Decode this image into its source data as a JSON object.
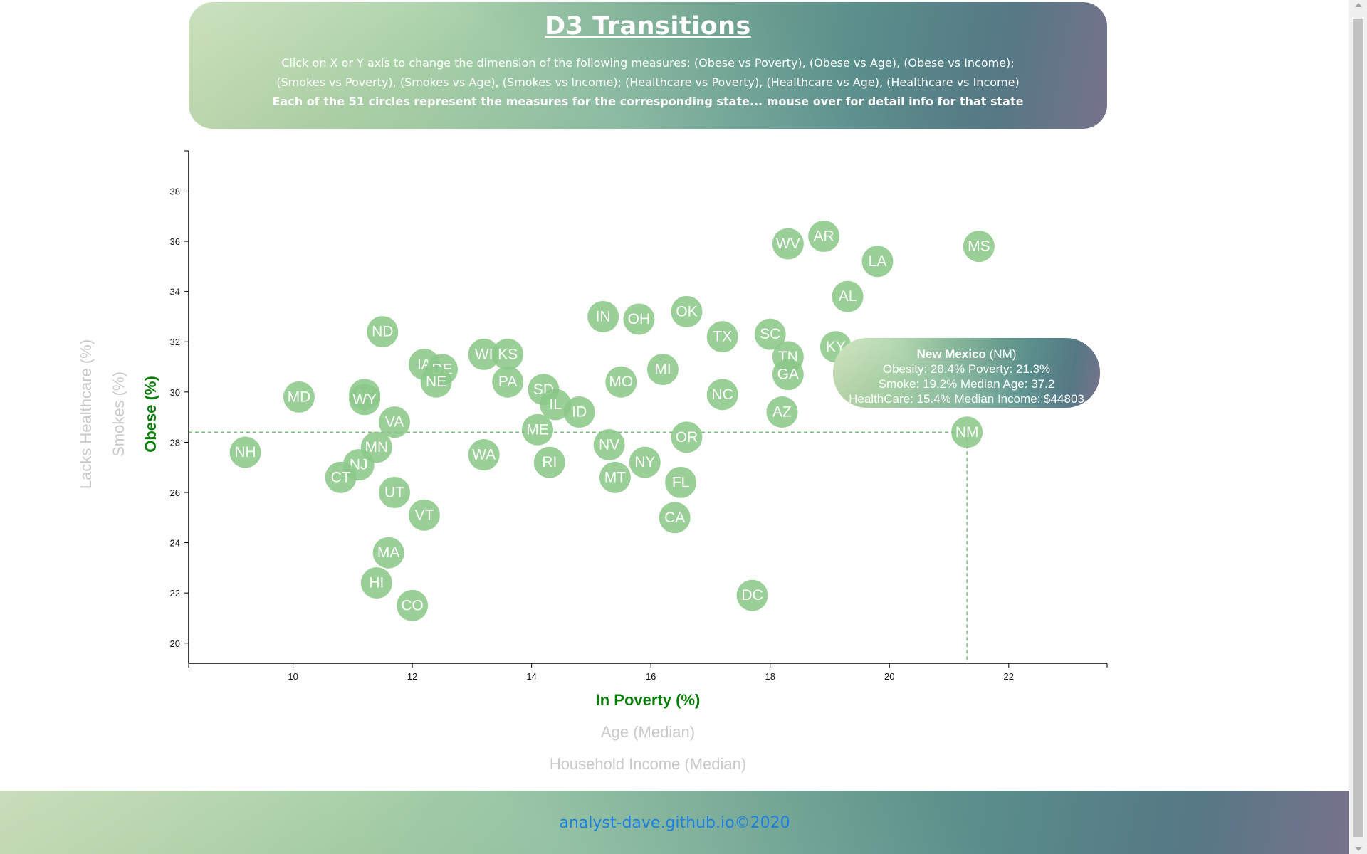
{
  "header": {
    "title": "D3 Transitions",
    "line1": "Click on X or Y axis to change the dimension of the following measures: (Obese vs Poverty), (Obese vs Age), (Obese vs Income);",
    "line2": "(Smokes vs Poverty), (Smokes vs Age), (Smokes vs Income); (Healthcare vs Poverty), (Healthcare vs Age), (Healthcare vs Income)",
    "line3": "Each of the 51 circles represent the measures for the corresponding state... mouse over for detail info for that state"
  },
  "footer": {
    "text": "analyst-dave.github.io©2020"
  },
  "colors": {
    "accent": "#0a7d0a",
    "circle": "#8cc88a",
    "inactive_label": "#c9c9c9",
    "link": "#1a7fe6"
  },
  "chart_data": {
    "type": "scatter",
    "xlabel": "In Poverty (%)",
    "ylabel": "Obese (%)",
    "x_axis_labels": [
      "In Poverty (%)",
      "Age (Median)",
      "Household Income (Median)"
    ],
    "y_axis_labels": [
      "Obese (%)",
      "Smokes (%)",
      "Lacks Healthcare (%)"
    ],
    "xlim": [
      8.25,
      23.65
    ],
    "ylim": [
      19.2,
      39.6
    ],
    "x_ticks": [
      10,
      12,
      14,
      16,
      18,
      20,
      22
    ],
    "y_ticks": [
      20,
      22,
      24,
      26,
      28,
      30,
      32,
      34,
      36,
      38
    ],
    "grid": false,
    "points": [
      {
        "abbr": "WV",
        "x": 18.3,
        "y": 35.9
      },
      {
        "abbr": "AR",
        "x": 18.9,
        "y": 36.2
      },
      {
        "abbr": "MS",
        "x": 21.5,
        "y": 35.8
      },
      {
        "abbr": "LA",
        "x": 19.8,
        "y": 35.2
      },
      {
        "abbr": "AL",
        "x": 19.3,
        "y": 33.8
      },
      {
        "abbr": "OK",
        "x": 16.6,
        "y": 33.2
      },
      {
        "abbr": "IN",
        "x": 15.2,
        "y": 33.0
      },
      {
        "abbr": "OH",
        "x": 15.8,
        "y": 32.9
      },
      {
        "abbr": "ND",
        "x": 11.5,
        "y": 32.4
      },
      {
        "abbr": "SC",
        "x": 18.0,
        "y": 32.3
      },
      {
        "abbr": "TX",
        "x": 17.2,
        "y": 32.2
      },
      {
        "abbr": "KY",
        "x": 19.1,
        "y": 31.8
      },
      {
        "abbr": "WI",
        "x": 13.2,
        "y": 31.5
      },
      {
        "abbr": "KS",
        "x": 13.6,
        "y": 31.5
      },
      {
        "abbr": "TN",
        "x": 18.3,
        "y": 31.4
      },
      {
        "abbr": "IA",
        "x": 12.2,
        "y": 31.1
      },
      {
        "abbr": "DE",
        "x": 12.5,
        "y": 30.9
      },
      {
        "abbr": "MI",
        "x": 16.2,
        "y": 30.9
      },
      {
        "abbr": "GA",
        "x": 18.3,
        "y": 30.7
      },
      {
        "abbr": "NE",
        "x": 12.4,
        "y": 30.4
      },
      {
        "abbr": "PA",
        "x": 13.6,
        "y": 30.4
      },
      {
        "abbr": "MO",
        "x": 15.5,
        "y": 30.4
      },
      {
        "abbr": "SD",
        "x": 14.2,
        "y": 30.1
      },
      {
        "abbr": "AK",
        "x": 11.2,
        "y": 29.9
      },
      {
        "abbr": "MD",
        "x": 10.1,
        "y": 29.8
      },
      {
        "abbr": "NC",
        "x": 17.2,
        "y": 29.9
      },
      {
        "abbr": "WY",
        "x": 11.2,
        "y": 29.7
      },
      {
        "abbr": "IL",
        "x": 14.4,
        "y": 29.5
      },
      {
        "abbr": "ID",
        "x": 14.8,
        "y": 29.2
      },
      {
        "abbr": "AZ",
        "x": 18.2,
        "y": 29.2
      },
      {
        "abbr": "VA",
        "x": 11.7,
        "y": 28.8
      },
      {
        "abbr": "NM",
        "x": 21.3,
        "y": 28.4
      },
      {
        "abbr": "ME",
        "x": 14.1,
        "y": 28.5
      },
      {
        "abbr": "OR",
        "x": 16.6,
        "y": 28.2
      },
      {
        "abbr": "MN",
        "x": 11.4,
        "y": 27.8
      },
      {
        "abbr": "NV",
        "x": 15.3,
        "y": 27.9
      },
      {
        "abbr": "NH",
        "x": 9.2,
        "y": 27.6
      },
      {
        "abbr": "WA",
        "x": 13.2,
        "y": 27.5
      },
      {
        "abbr": "NJ",
        "x": 11.1,
        "y": 27.1
      },
      {
        "abbr": "RI",
        "x": 14.3,
        "y": 27.2
      },
      {
        "abbr": "NY",
        "x": 15.9,
        "y": 27.2
      },
      {
        "abbr": "MT",
        "x": 15.4,
        "y": 26.6
      },
      {
        "abbr": "CT",
        "x": 10.8,
        "y": 26.6
      },
      {
        "abbr": "FL",
        "x": 16.5,
        "y": 26.4
      },
      {
        "abbr": "UT",
        "x": 11.7,
        "y": 26.0
      },
      {
        "abbr": "VT",
        "x": 12.2,
        "y": 25.1
      },
      {
        "abbr": "CA",
        "x": 16.4,
        "y": 25.0
      },
      {
        "abbr": "MA",
        "x": 11.6,
        "y": 23.6
      },
      {
        "abbr": "HI",
        "x": 11.4,
        "y": 22.4
      },
      {
        "abbr": "DC",
        "x": 17.7,
        "y": 21.9
      },
      {
        "abbr": "CO",
        "x": 12.0,
        "y": 21.5
      }
    ],
    "highlight": "NM",
    "tooltip": {
      "name": "New Mexico",
      "abbr_text": "(NM)",
      "line1": "Obesity: 28.4% Poverty: 21.3%",
      "line2": "Smoke: 19.2% Median Age: 37.2",
      "line3": "HealthCare: 15.4% Median Income: $44803"
    }
  }
}
